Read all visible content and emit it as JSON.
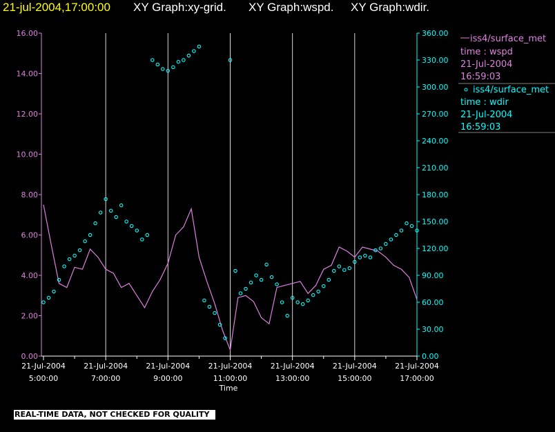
{
  "header": {
    "timestamp": "21-jul-2004,17:00:00",
    "graph1": "XY Graph:xy-grid.",
    "graph2": "XY Graph:wspd.",
    "graph3": "XY Graph:wdir."
  },
  "legend": {
    "wspd": {
      "line1": "iss4/surface_met",
      "line2": "time : wspd",
      "line3": "21-Jul-2004",
      "line4": "16:59:03"
    },
    "wdir": {
      "line1": "iss4/surface_met",
      "line2": "time : wdir",
      "line3": "21-Jul-2004",
      "line4": "16:59:03"
    }
  },
  "qc_notice": "REAL-TIME DATA, NOT CHECKED FOR QUALITY",
  "colors": {
    "header_timestamp": "#ffff00",
    "header_text": "#ffffff",
    "wspd": "#e080e0",
    "wdir": "#00ffff",
    "grid": "#ffffff",
    "background": "#000000"
  },
  "chart_data": {
    "type": "line",
    "xlabel": "Time",
    "xlim": [
      "21-Jul-2004 04:56:00",
      "21-Jul-2004 17:00:00"
    ],
    "x_ticks": [
      {
        "date": "21-Jul-2004",
        "time": "5:00:00"
      },
      {
        "date": "21-Jul-2004",
        "time": "7:00:00"
      },
      {
        "date": "21-Jul-2004",
        "time": "9:00:00"
      },
      {
        "date": "21-Jul-2004",
        "time": "11:00:00"
      },
      {
        "date": "21-Jul-2004",
        "time": "13:00:00"
      },
      {
        "date": "21-Jul-2004",
        "time": "15:00:00"
      },
      {
        "date": "21-Jul-2004",
        "time": "17:00:00"
      }
    ],
    "y_left": {
      "ylim": [
        0,
        16
      ],
      "ticks": [
        "0.00",
        "2.00",
        "4.00",
        "6.00",
        "8.00",
        "10.00",
        "12.00",
        "14.00",
        "16.00"
      ]
    },
    "y_right": {
      "ylim": [
        0,
        360
      ],
      "ticks": [
        "0.00",
        "30.00",
        "60.00",
        "90.00",
        "120.00",
        "150.00",
        "180.00",
        "210.00",
        "240.00",
        "270.00",
        "300.00",
        "330.00",
        "360.00"
      ]
    },
    "grid": "vertical",
    "series": [
      {
        "name": "wspd",
        "axis": "left",
        "style": "line",
        "x": [
          "05:00",
          "05:15",
          "05:30",
          "05:45",
          "06:00",
          "06:15",
          "06:30",
          "06:45",
          "07:00",
          "07:15",
          "07:30",
          "07:45",
          "08:00",
          "08:15",
          "08:30",
          "08:45",
          "09:00",
          "09:15",
          "09:30",
          "09:45",
          "10:00",
          "10:15",
          "10:30",
          "10:45",
          "11:00",
          "11:15",
          "11:30",
          "11:45",
          "12:00",
          "12:15",
          "12:30",
          "12:45",
          "13:00",
          "13:15",
          "13:30",
          "13:45",
          "14:00",
          "14:15",
          "14:30",
          "14:45",
          "15:00",
          "15:15",
          "15:30",
          "15:45",
          "16:00",
          "16:15",
          "16:30",
          "16:45",
          "17:00"
        ],
        "values": [
          7.5,
          5.5,
          3.6,
          3.4,
          4.4,
          4.3,
          5.3,
          4.9,
          4.3,
          4.1,
          3.4,
          3.6,
          3.0,
          2.4,
          3.2,
          3.8,
          4.6,
          6.0,
          6.4,
          7.3,
          4.9,
          3.7,
          2.6,
          1.3,
          0.3,
          2.9,
          3.0,
          2.7,
          1.9,
          1.6,
          3.4,
          3.5,
          3.6,
          3.7,
          3.1,
          3.5,
          4.3,
          4.5,
          5.4,
          5.2,
          4.9,
          5.4,
          5.3,
          5.2,
          4.9,
          4.5,
          4.3,
          3.9,
          2.8
        ]
      },
      {
        "name": "wdir",
        "axis": "right",
        "style": "points",
        "x": [
          "05:00",
          "05:10",
          "05:20",
          "05:30",
          "05:40",
          "05:50",
          "06:00",
          "06:10",
          "06:20",
          "06:30",
          "06:40",
          "06:50",
          "07:00",
          "07:10",
          "07:20",
          "07:30",
          "07:40",
          "07:50",
          "08:00",
          "08:10",
          "08:20",
          "08:30",
          "08:40",
          "08:50",
          "09:00",
          "09:10",
          "09:20",
          "09:30",
          "09:40",
          "09:50",
          "10:00",
          "10:10",
          "10:20",
          "10:30",
          "10:40",
          "10:50",
          "11:00",
          "11:10",
          "11:20",
          "11:30",
          "11:40",
          "11:50",
          "12:00",
          "12:10",
          "12:20",
          "12:30",
          "12:40",
          "12:50",
          "13:00",
          "13:10",
          "13:20",
          "13:30",
          "13:40",
          "13:50",
          "14:00",
          "14:10",
          "14:20",
          "14:30",
          "14:40",
          "14:50",
          "15:00",
          "15:10",
          "15:20",
          "15:30",
          "15:40",
          "15:50",
          "16:00",
          "16:10",
          "16:20",
          "16:30",
          "16:40",
          "16:50",
          "17:00"
        ],
        "values": [
          60,
          65,
          72,
          85,
          100,
          108,
          112,
          118,
          128,
          135,
          148,
          160,
          175,
          162,
          155,
          168,
          150,
          145,
          140,
          130,
          135,
          330,
          325,
          320,
          318,
          322,
          328,
          330,
          335,
          340,
          345,
          62,
          55,
          48,
          35,
          20,
          330,
          95,
          70,
          75,
          82,
          90,
          85,
          102,
          88,
          80,
          60,
          45,
          65,
          60,
          58,
          62,
          68,
          72,
          78,
          85,
          95,
          100,
          96,
          98,
          105,
          110,
          112,
          110,
          118,
          120,
          125,
          130,
          135,
          140,
          148,
          145,
          140
        ]
      }
    ]
  }
}
